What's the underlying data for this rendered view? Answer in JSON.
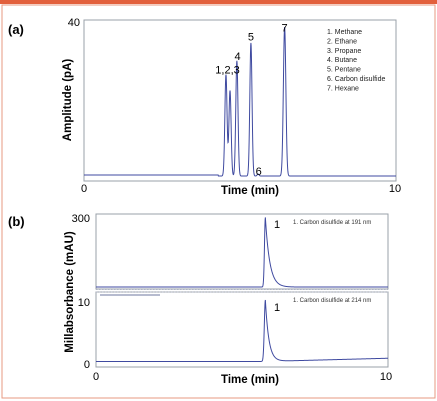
{
  "colors": {
    "accent_bar": "#e2603c",
    "frame_border": "#e79a80",
    "plot_border": "#9aa0a8",
    "trace": "#3f4aa0",
    "axis_text": "#1a1a1a"
  },
  "chart_data": [
    {
      "type": "line",
      "panel_label": "(a)",
      "xlabel": "Time (min)",
      "ylabel": "Amplitude (pA)",
      "xlim": [
        0,
        10
      ],
      "ylim": [
        0,
        40
      ],
      "x_ticks": [
        "0",
        "10"
      ],
      "y_ticks": [
        "40"
      ],
      "grid": false,
      "legend_position": "top-right",
      "legend": [
        "1. Methane",
        "2. Ethane",
        "3. Propane",
        "4. Butane",
        "5. Pentane",
        "6. Carbon disulfide",
        "7. Hexane"
      ],
      "peak_labels": [
        {
          "text": "1,2,3",
          "x": 4.6,
          "y": 27
        },
        {
          "text": "4",
          "x": 4.92,
          "y": 30.5
        },
        {
          "text": "5",
          "x": 5.35,
          "y": 35.3
        },
        {
          "text": "6",
          "x": 5.6,
          "y": 1.5
        },
        {
          "text": "7",
          "x": 6.43,
          "y": 37.6
        }
      ],
      "peaks": [
        {
          "t": 4.55,
          "h": 25.5,
          "w": 0.035
        },
        {
          "t": 4.68,
          "h": 21.5,
          "w": 0.035
        },
        {
          "t": 4.9,
          "h": 29,
          "w": 0.035
        },
        {
          "t": 5.35,
          "h": 33.5,
          "w": 0.035
        },
        {
          "t": 5.58,
          "h": 0.5,
          "w": 0.03
        },
        {
          "t": 6.43,
          "h": 37.5,
          "w": 0.04
        }
      ],
      "baseline": 1.5
    },
    {
      "type": "line",
      "panel_label": "(b)",
      "xlabel": "Time (min)",
      "ylabel": "Millabsorbance (mAU)",
      "xlim": [
        0,
        10
      ],
      "x_ticks": [
        "0",
        "10"
      ],
      "grid": false,
      "subplots": [
        {
          "ylim": [
            0,
            300
          ],
          "y_ticks": [
            "300"
          ],
          "annotation": "1. Carbon disulfide at 191 nm",
          "peak_label": "1",
          "peak": {
            "t": 5.8,
            "h": 290,
            "w": 0.03,
            "tail": 0.15
          },
          "baseline": 4
        },
        {
          "ylim": [
            0,
            10
          ],
          "y_ticks": [
            "10",
            "0"
          ],
          "annotation": "1. Carbon disulfide at 214 nm",
          "peak_label": "1",
          "peak": {
            "t": 5.8,
            "h": 9.6,
            "w": 0.035,
            "tail": 0.12
          },
          "baseline": 0.4,
          "drift_end": 0.9
        }
      ]
    }
  ]
}
